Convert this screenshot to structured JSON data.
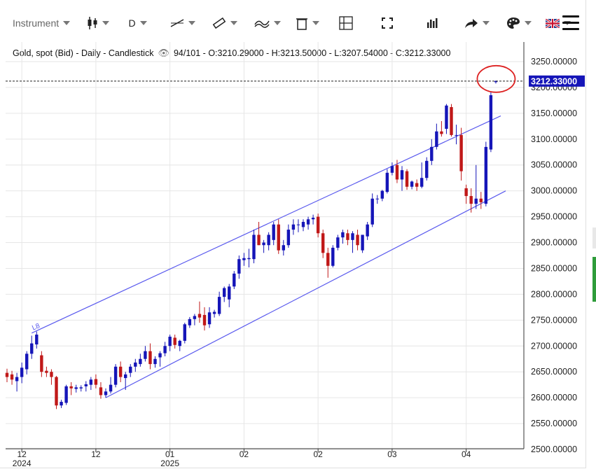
{
  "toolbar": {
    "instrument_label": "Instrument",
    "timeframe_label": "D",
    "icons": [
      "candle-type-icon",
      "line-tool-icon",
      "ruler-icon",
      "indicator-icon",
      "delete-icon",
      "layout-icon",
      "fullscreen-icon",
      "bar-chart-icon",
      "share-icon",
      "palette-icon",
      "uk-flag-icon",
      "menu-icon"
    ]
  },
  "info": {
    "title": "Gold, spot (Bid) - Daily - Candlestick",
    "counter": "94/101",
    "ohlc": "O:3210.29000 - H:3213.50000 - L:3207.54000 - C:3212.33000"
  },
  "chart_data": {
    "type": "candlestick",
    "y_axis": {
      "min": 2500,
      "max": 3250,
      "ticks": [
        "2500.00000",
        "2550.00000",
        "2600.00000",
        "2650.00000",
        "2700.00000",
        "2750.00000",
        "2800.00000",
        "2850.00000",
        "2900.00000",
        "2950.00000",
        "3000.00000",
        "3050.00000",
        "3100.00000",
        "3150.00000",
        "3200.00000",
        "3250.00000"
      ]
    },
    "x_axis": {
      "labels": [
        {
          "month": "12",
          "year": "2024",
          "bar": 3
        },
        {
          "month": "12",
          "year": "",
          "bar": 18
        },
        {
          "month": "01",
          "year": "2025",
          "bar": 33
        },
        {
          "month": "02",
          "year": "",
          "bar": 48
        },
        {
          "month": "02",
          "year": "",
          "bar": 63
        },
        {
          "month": "03",
          "year": "",
          "bar": 78
        },
        {
          "month": "04",
          "year": "",
          "bar": 93
        }
      ]
    },
    "last_price_label": "3212.33000",
    "last_price": 3212.33,
    "colors": {
      "up": "#1515b8",
      "down": "#c01818",
      "channel": "#5a5aee",
      "price_tag": "#1515b8",
      "highlight": "#dd2222"
    },
    "channel": {
      "label": "L8",
      "upper": {
        "start": {
          "bar": 5,
          "price": 2725
        },
        "end": {
          "bar": 100,
          "price": 3145
        }
      },
      "lower": {
        "start": {
          "bar": 20,
          "price": 2600
        },
        "end": {
          "bar": 101,
          "price": 3000
        }
      }
    },
    "candles": [
      {
        "o": 2648,
        "h": 2656,
        "l": 2630,
        "c": 2640
      },
      {
        "o": 2645,
        "h": 2652,
        "l": 2625,
        "c": 2635
      },
      {
        "o": 2632,
        "h": 2648,
        "l": 2612,
        "c": 2640
      },
      {
        "o": 2640,
        "h": 2668,
        "l": 2628,
        "c": 2658
      },
      {
        "o": 2655,
        "h": 2690,
        "l": 2645,
        "c": 2685
      },
      {
        "o": 2685,
        "h": 2720,
        "l": 2675,
        "c": 2705
      },
      {
        "o": 2703,
        "h": 2728,
        "l": 2695,
        "c": 2722
      },
      {
        "o": 2682,
        "h": 2690,
        "l": 2640,
        "c": 2650
      },
      {
        "o": 2652,
        "h": 2660,
        "l": 2640,
        "c": 2648
      },
      {
        "o": 2650,
        "h": 2655,
        "l": 2625,
        "c": 2640
      },
      {
        "o": 2640,
        "h": 2642,
        "l": 2578,
        "c": 2585
      },
      {
        "o": 2585,
        "h": 2596,
        "l": 2580,
        "c": 2592
      },
      {
        "o": 2590,
        "h": 2625,
        "l": 2586,
        "c": 2622
      },
      {
        "o": 2622,
        "h": 2630,
        "l": 2605,
        "c": 2618
      },
      {
        "o": 2617,
        "h": 2625,
        "l": 2610,
        "c": 2620
      },
      {
        "o": 2618,
        "h": 2624,
        "l": 2612,
        "c": 2620
      },
      {
        "o": 2622,
        "h": 2632,
        "l": 2612,
        "c": 2626
      },
      {
        "o": 2625,
        "h": 2640,
        "l": 2615,
        "c": 2635
      },
      {
        "o": 2636,
        "h": 2645,
        "l": 2618,
        "c": 2625
      },
      {
        "o": 2620,
        "h": 2630,
        "l": 2598,
        "c": 2605
      },
      {
        "o": 2605,
        "h": 2618,
        "l": 2600,
        "c": 2612
      },
      {
        "o": 2612,
        "h": 2640,
        "l": 2608,
        "c": 2625
      },
      {
        "o": 2625,
        "h": 2665,
        "l": 2620,
        "c": 2660
      },
      {
        "o": 2660,
        "h": 2670,
        "l": 2630,
        "c": 2640
      },
      {
        "o": 2638,
        "h": 2650,
        "l": 2615,
        "c": 2645
      },
      {
        "o": 2648,
        "h": 2665,
        "l": 2640,
        "c": 2660
      },
      {
        "o": 2660,
        "h": 2675,
        "l": 2650,
        "c": 2668
      },
      {
        "o": 2665,
        "h": 2685,
        "l": 2660,
        "c": 2675
      },
      {
        "o": 2675,
        "h": 2700,
        "l": 2670,
        "c": 2690
      },
      {
        "o": 2690,
        "h": 2705,
        "l": 2655,
        "c": 2665
      },
      {
        "o": 2665,
        "h": 2680,
        "l": 2658,
        "c": 2675
      },
      {
        "o": 2678,
        "h": 2690,
        "l": 2660,
        "c": 2686
      },
      {
        "o": 2686,
        "h": 2708,
        "l": 2680,
        "c": 2700
      },
      {
        "o": 2700,
        "h": 2722,
        "l": 2690,
        "c": 2718
      },
      {
        "o": 2716,
        "h": 2722,
        "l": 2695,
        "c": 2702
      },
      {
        "o": 2700,
        "h": 2712,
        "l": 2690,
        "c": 2710
      },
      {
        "o": 2710,
        "h": 2745,
        "l": 2705,
        "c": 2742
      },
      {
        "o": 2740,
        "h": 2756,
        "l": 2735,
        "c": 2752
      },
      {
        "o": 2752,
        "h": 2762,
        "l": 2740,
        "c": 2758
      },
      {
        "o": 2762,
        "h": 2786,
        "l": 2745,
        "c": 2755
      },
      {
        "o": 2760,
        "h": 2775,
        "l": 2730,
        "c": 2740
      },
      {
        "o": 2742,
        "h": 2775,
        "l": 2735,
        "c": 2765
      },
      {
        "o": 2762,
        "h": 2770,
        "l": 2755,
        "c": 2766
      },
      {
        "o": 2762,
        "h": 2805,
        "l": 2758,
        "c": 2795
      },
      {
        "o": 2795,
        "h": 2815,
        "l": 2785,
        "c": 2812
      },
      {
        "o": 2790,
        "h": 2820,
        "l": 2775,
        "c": 2815
      },
      {
        "o": 2815,
        "h": 2845,
        "l": 2810,
        "c": 2840
      },
      {
        "o": 2840,
        "h": 2875,
        "l": 2830,
        "c": 2868
      },
      {
        "o": 2866,
        "h": 2880,
        "l": 2855,
        "c": 2870
      },
      {
        "o": 2868,
        "h": 2888,
        "l": 2852,
        "c": 2870
      },
      {
        "o": 2868,
        "h": 2925,
        "l": 2860,
        "c": 2915
      },
      {
        "o": 2915,
        "h": 2940,
        "l": 2895,
        "c": 2895
      },
      {
        "o": 2895,
        "h": 2905,
        "l": 2880,
        "c": 2900
      },
      {
        "o": 2895,
        "h": 2920,
        "l": 2885,
        "c": 2915
      },
      {
        "o": 2905,
        "h": 2940,
        "l": 2895,
        "c": 2935
      },
      {
        "o": 2935,
        "h": 2945,
        "l": 2878,
        "c": 2885
      },
      {
        "o": 2885,
        "h": 2905,
        "l": 2875,
        "c": 2895
      },
      {
        "o": 2895,
        "h": 2935,
        "l": 2890,
        "c": 2925
      },
      {
        "o": 2925,
        "h": 2945,
        "l": 2915,
        "c": 2935
      },
      {
        "o": 2935,
        "h": 2945,
        "l": 2920,
        "c": 2935
      },
      {
        "o": 2930,
        "h": 2945,
        "l": 2922,
        "c": 2940
      },
      {
        "o": 2935,
        "h": 2950,
        "l": 2925,
        "c": 2945
      },
      {
        "o": 2945,
        "h": 2954,
        "l": 2935,
        "c": 2948
      },
      {
        "o": 2950,
        "h": 2956,
        "l": 2910,
        "c": 2918
      },
      {
        "o": 2918,
        "h": 2925,
        "l": 2870,
        "c": 2880
      },
      {
        "o": 2880,
        "h": 2890,
        "l": 2832,
        "c": 2855
      },
      {
        "o": 2855,
        "h": 2895,
        "l": 2852,
        "c": 2890
      },
      {
        "o": 2890,
        "h": 2915,
        "l": 2885,
        "c": 2910
      },
      {
        "o": 2910,
        "h": 2925,
        "l": 2898,
        "c": 2920
      },
      {
        "o": 2918,
        "h": 2925,
        "l": 2895,
        "c": 2905
      },
      {
        "o": 2905,
        "h": 2922,
        "l": 2880,
        "c": 2918
      },
      {
        "o": 2915,
        "h": 2925,
        "l": 2885,
        "c": 2895
      },
      {
        "o": 2885,
        "h": 2915,
        "l": 2880,
        "c": 2915
      },
      {
        "o": 2912,
        "h": 2940,
        "l": 2905,
        "c": 2935
      },
      {
        "o": 2935,
        "h": 2995,
        "l": 2930,
        "c": 2985
      },
      {
        "o": 2985,
        "h": 2992,
        "l": 2975,
        "c": 2985
      },
      {
        "o": 2985,
        "h": 3002,
        "l": 2980,
        "c": 3000
      },
      {
        "o": 2998,
        "h": 3042,
        "l": 2995,
        "c": 3035
      },
      {
        "o": 3035,
        "h": 3055,
        "l": 3030,
        "c": 3048
      },
      {
        "o": 3050,
        "h": 3060,
        "l": 3015,
        "c": 3022
      },
      {
        "o": 3022,
        "h": 3048,
        "l": 3000,
        "c": 3040
      },
      {
        "o": 3038,
        "h": 3042,
        "l": 3002,
        "c": 3008
      },
      {
        "o": 3008,
        "h": 3020,
        "l": 3003,
        "c": 3018
      },
      {
        "o": 3015,
        "h": 3022,
        "l": 3000,
        "c": 3008
      },
      {
        "o": 3008,
        "h": 3055,
        "l": 3005,
        "c": 3025
      },
      {
        "o": 3025,
        "h": 3065,
        "l": 3020,
        "c": 3058
      },
      {
        "o": 3058,
        "h": 3100,
        "l": 3050,
        "c": 3085
      },
      {
        "o": 3085,
        "h": 3130,
        "l": 3080,
        "c": 3115
      },
      {
        "o": 3115,
        "h": 3135,
        "l": 3105,
        "c": 3110
      },
      {
        "o": 3120,
        "h": 3168,
        "l": 3110,
        "c": 3165
      },
      {
        "o": 3162,
        "h": 3168,
        "l": 3105,
        "c": 3108
      },
      {
        "o": 3108,
        "h": 3128,
        "l": 3090,
        "c": 3108
      },
      {
        "o": 3108,
        "h": 3122,
        "l": 3020,
        "c": 3038
      },
      {
        "o": 3005,
        "h": 3012,
        "l": 2975,
        "c": 2990
      },
      {
        "o": 2990,
        "h": 3005,
        "l": 2958,
        "c": 2975
      },
      {
        "o": 2975,
        "h": 3050,
        "l": 2965,
        "c": 2985
      },
      {
        "o": 2985,
        "h": 2998,
        "l": 2965,
        "c": 2978
      },
      {
        "o": 2975,
        "h": 3095,
        "l": 2970,
        "c": 3085
      },
      {
        "o": 3080,
        "h": 3192,
        "l": 3075,
        "c": 3185
      },
      {
        "o": 3210.29,
        "h": 3213.5,
        "l": 3207.54,
        "c": 3212.33
      }
    ]
  }
}
